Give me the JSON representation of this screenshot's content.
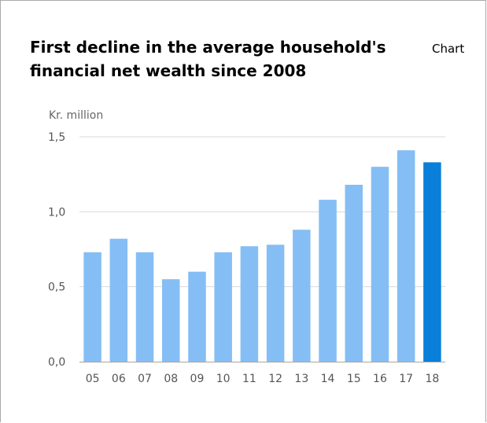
{
  "header": {
    "title": "First decline in the average household's financial net wealth since 2008",
    "chart_link": "Chart"
  },
  "chart_data": {
    "type": "bar",
    "title": "First decline in the average household's financial net wealth since 2008",
    "ylabel": "Kr. million",
    "xlabel": "",
    "categories": [
      "05",
      "06",
      "07",
      "08",
      "09",
      "10",
      "11",
      "12",
      "13",
      "14",
      "15",
      "16",
      "17",
      "18"
    ],
    "values": [
      0.73,
      0.82,
      0.73,
      0.55,
      0.6,
      0.73,
      0.77,
      0.78,
      0.88,
      1.08,
      1.18,
      1.3,
      1.41,
      1.33
    ],
    "ylim": [
      0,
      1.5
    ],
    "yticks": [
      {
        "value": 0.0,
        "label": "0,0"
      },
      {
        "value": 0.5,
        "label": "0,5"
      },
      {
        "value": 1.0,
        "label": "1,0"
      },
      {
        "value": 1.5,
        "label": "1,5"
      }
    ],
    "grid": true,
    "colors": {
      "bar": "#85bef4",
      "highlight_bar": "#0a7fd9",
      "grid": "#d9d9d9",
      "axis": "#a6a6a6"
    },
    "highlight_index": 13
  }
}
